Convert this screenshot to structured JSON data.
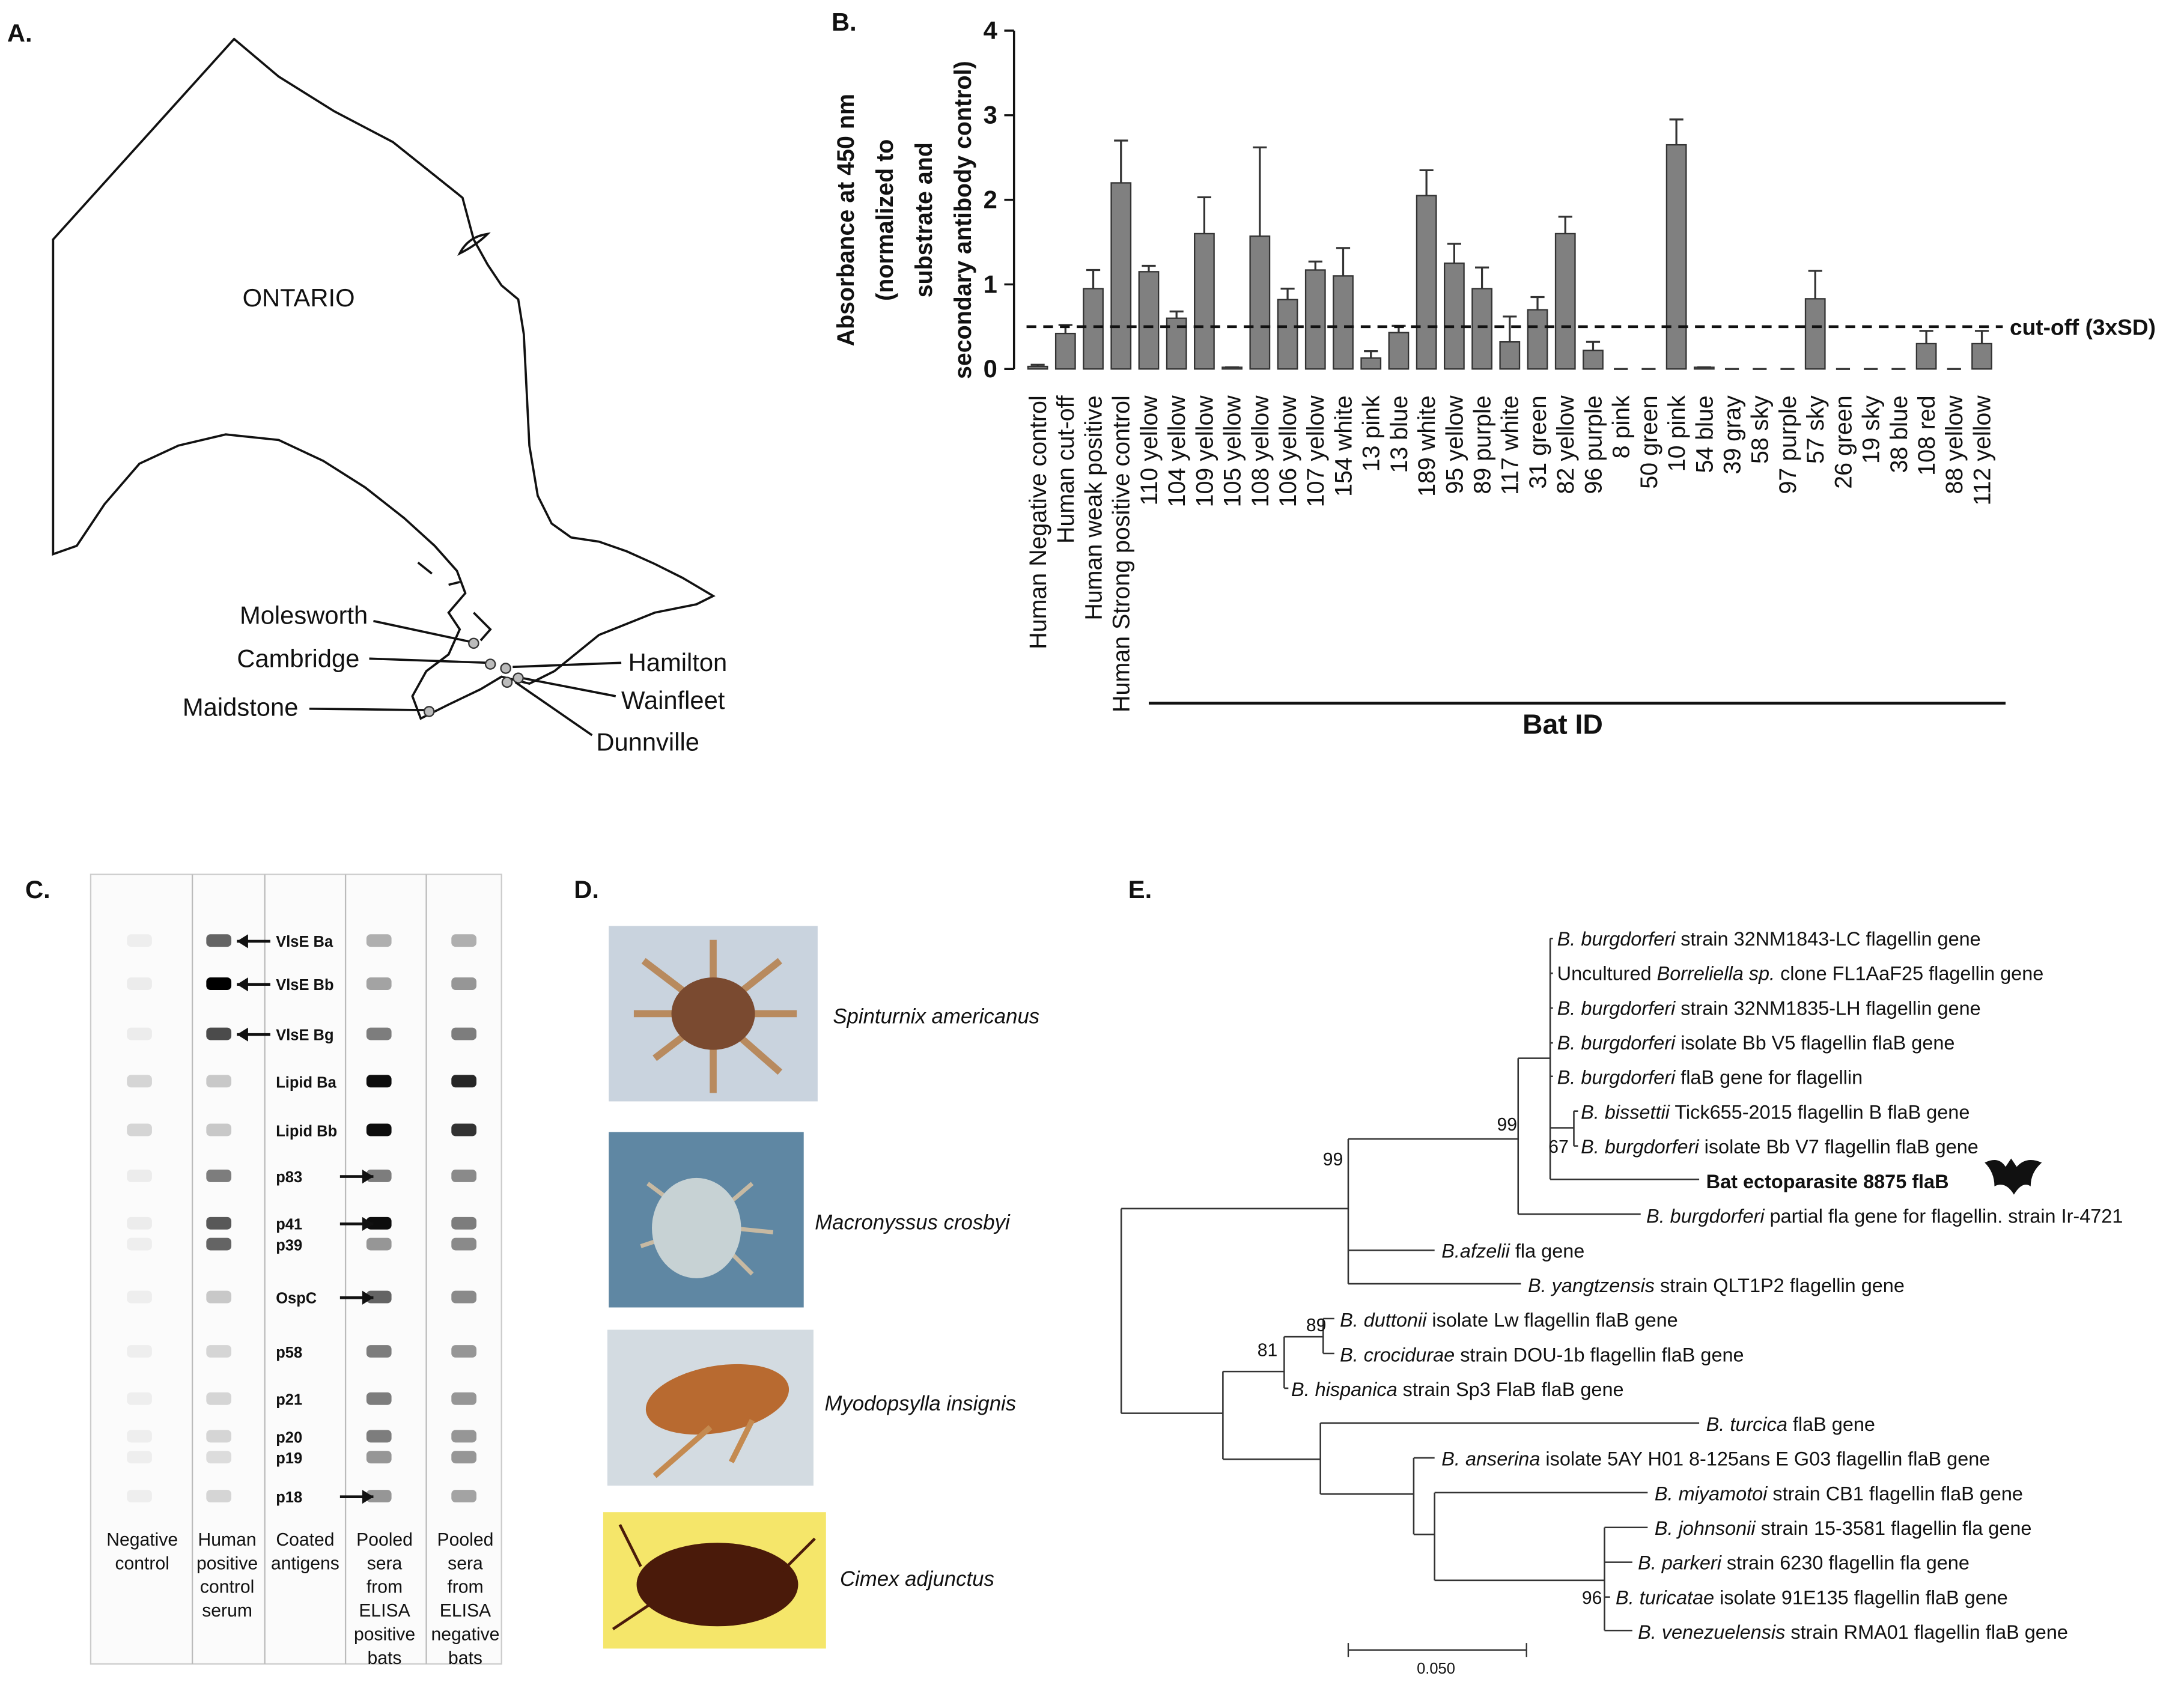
{
  "panel_labels": [
    "A.",
    "B.",
    "C.",
    "D.",
    "E."
  ],
  "map": {
    "region": "ONTARIO",
    "sites": [
      "Molesworth",
      "Cambridge",
      "Hamilton",
      "Wainfleet",
      "Dunnville",
      "Maidstone"
    ]
  },
  "chart_data": {
    "type": "bar",
    "y_label_lines": [
      "Absorbance at 450 nm",
      "(normalized to",
      "substrate and",
      "secondary antibody control)"
    ],
    "categories": [
      "Human Negative control",
      "Human cut-off",
      "Human weak positive",
      "Human Strong positive control",
      "110 yellow",
      "104 yellow",
      "109 yellow",
      "105 yellow",
      "108 yellow",
      "106 yellow",
      "107 yellow",
      "154 white",
      "13 pink",
      "13 blue",
      "189 white",
      "95 yellow",
      "89 purple",
      "117 white",
      "31 green",
      "82 yellow",
      "96 purple",
      "8 pink",
      "50 green",
      "10 pink",
      "54 blue",
      "39 gray",
      "58 sky",
      "97 purple",
      "57 sky",
      "26 green",
      "19 sky",
      "38 blue",
      "108 red",
      "88 yellow",
      "112 yellow"
    ],
    "values": [
      0.03,
      0.42,
      0.95,
      2.2,
      1.15,
      0.6,
      1.6,
      0.02,
      1.57,
      0.82,
      1.17,
      1.1,
      0.13,
      0.43,
      2.05,
      1.25,
      0.95,
      0.32,
      0.7,
      1.6,
      0.22,
      0,
      0,
      2.65,
      0.02,
      0,
      0,
      0,
      0.83,
      0,
      0,
      0,
      0.3,
      0,
      0.3
    ],
    "errors": [
      0.02,
      0.1,
      0.22,
      0.5,
      0.07,
      0.08,
      0.43,
      0,
      1.05,
      0.13,
      0.1,
      0.33,
      0.08,
      0.08,
      0.3,
      0.23,
      0.25,
      0.3,
      0.15,
      0.2,
      0.1,
      0,
      0,
      0.3,
      0,
      0,
      0,
      0,
      0.33,
      0,
      0,
      0,
      0.15,
      0,
      0.15
    ],
    "color": "#808080",
    "ylim": [
      0,
      4
    ],
    "yticks": [
      0,
      1,
      2,
      3,
      4
    ],
    "cutoff": {
      "value": 0.5,
      "label": "cut-off (3xSD)"
    },
    "group_label": "Bat ID"
  },
  "blot": {
    "bands": [
      "VlsE Ba",
      "VlsE Bb",
      "VlsE Bg",
      "Lipid Ba",
      "Lipid Bb",
      "p83",
      "p41",
      "p39",
      "OspC",
      "p58",
      "p21",
      "p20",
      "p19",
      "p18"
    ],
    "lanes": [
      [
        "Negative",
        "control"
      ],
      [
        "Human",
        "positive",
        "control",
        "serum"
      ],
      [
        "Coated",
        "antigens"
      ],
      [
        "Pooled",
        "sera",
        "from",
        "ELISA",
        "positive",
        "bats"
      ],
      [
        "Pooled",
        "sera",
        "from",
        "ELISA",
        "negative",
        "bats"
      ]
    ]
  },
  "photos": {
    "species": [
      "Spinturnix americanus",
      "Macronyssus crosbyi",
      "Myodopsylla insignis",
      "Cimex adjunctus"
    ]
  },
  "tree": {
    "tips": [
      [
        {
          "text": "B. burgdorferi",
          "italic": true
        },
        {
          "text": " strain 32NM1843-LC flagellin gene"
        }
      ],
      [
        {
          "text": "Uncultured "
        },
        {
          "text": "Borreliella sp.",
          "italic": true
        },
        {
          "text": " clone FL1AaF25 flagellin gene"
        }
      ],
      [
        {
          "text": "B. burgdorferi",
          "italic": true
        },
        {
          "text": " strain 32NM1835-LH flagellin gene"
        }
      ],
      [
        {
          "text": "B. burgdorferi",
          "italic": true
        },
        {
          "text": " isolate Bb V5 flagellin flaB gene"
        }
      ],
      [
        {
          "text": "B. burgdorferi",
          "italic": true
        },
        {
          "text": " flaB gene for flagellin"
        }
      ],
      [
        {
          "text": "B. bissettii",
          "italic": true
        },
        {
          "text": " Tick655-2015 flagellin B flaB gene"
        }
      ],
      [
        {
          "text": "B. burgdorferi",
          "italic": true
        },
        {
          "text": " isolate Bb V7 flagellin flaB gene"
        }
      ],
      [
        {
          "text": "Bat ectoparasite 8875 flaB",
          "bold": true
        }
      ],
      [
        {
          "text": "B. burgdorferi",
          "italic": true
        },
        {
          "text": " partial fla gene for flagellin. strain Ir-4721"
        }
      ],
      [
        {
          "text": "B.afzelii",
          "italic": true
        },
        {
          "text": " fla gene"
        }
      ],
      [
        {
          "text": "B. yangtzensis",
          "italic": true
        },
        {
          "text": " strain QLT1P2 flagellin gene"
        }
      ],
      [
        {
          "text": "B. duttonii",
          "italic": true
        },
        {
          "text": " isolate Lw flagellin flaB gene"
        }
      ],
      [
        {
          "text": "B. crocidurae",
          "italic": true
        },
        {
          "text": " strain DOU-1b flagellin flaB gene"
        }
      ],
      [
        {
          "text": "B. hispanica",
          "italic": true
        },
        {
          "text": " strain Sp3 FlaB flaB gene"
        }
      ],
      [
        {
          "text": "B. turcica",
          "italic": true
        },
        {
          "text": " flaB gene"
        }
      ],
      [
        {
          "text": "B. anserina",
          "italic": true
        },
        {
          "text": " isolate 5AY H01 8-125ans E G03 flagellin flaB gene"
        }
      ],
      [
        {
          "text": "B. miyamotoi",
          "italic": true
        },
        {
          "text": " strain CB1 flagellin flaB gene"
        }
      ],
      [
        {
          "text": "B. johnsonii",
          "italic": true
        },
        {
          "text": " strain 15-3581 flagellin fla gene"
        }
      ],
      [
        {
          "text": "B. parkeri",
          "italic": true
        },
        {
          "text": " strain 6230 flagellin fla gene"
        }
      ],
      [
        {
          "text": "B. turicatae",
          "italic": true
        },
        {
          "text": " isolate 91E135 flagellin flaB gene"
        }
      ],
      [
        {
          "text": "B. venezuelensis",
          "italic": true
        },
        {
          "text": " strain RMA01 flagellin flaB gene"
        }
      ]
    ],
    "bootstrap": [
      99,
      99,
      67,
      89,
      81,
      96
    ],
    "scale_label": "0.050"
  }
}
